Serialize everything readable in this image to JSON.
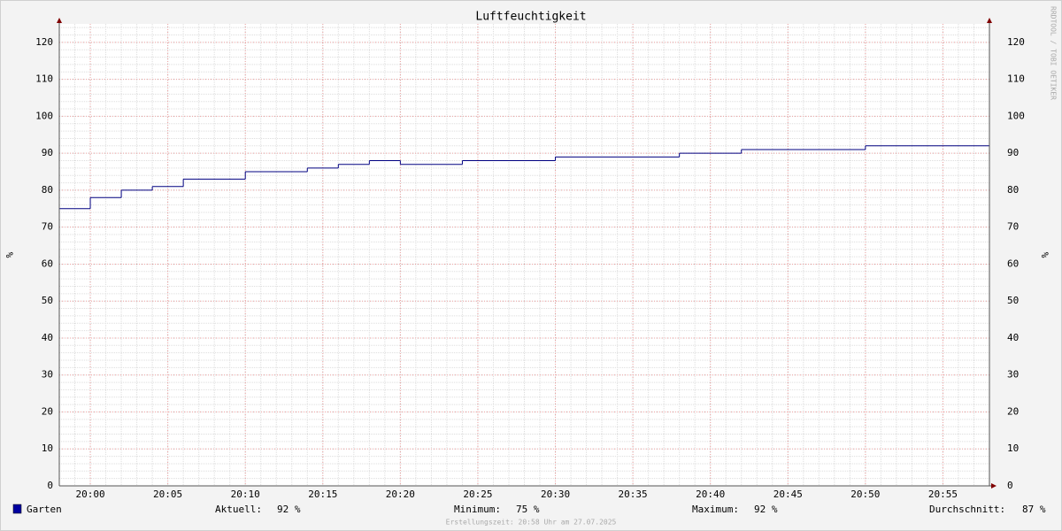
{
  "chart_data": {
    "type": "step",
    "title": "Luftfeuchtigkeit",
    "y_label": "%",
    "y2_label": "%",
    "watermark": "RRDTOOL / TOBI OETIKER",
    "x": [
      "19:58",
      "20:00",
      "20:02",
      "20:04",
      "20:06",
      "20:10",
      "20:14",
      "20:16",
      "20:18",
      "20:20",
      "20:24",
      "20:30",
      "20:38",
      "20:42",
      "20:50"
    ],
    "xlim": [
      "19:58",
      "20:58"
    ],
    "xticks": [
      "20:00",
      "20:05",
      "20:10",
      "20:15",
      "20:20",
      "20:25",
      "20:30",
      "20:35",
      "20:40",
      "20:45",
      "20:50",
      "20:55"
    ],
    "ylim": [
      0,
      125
    ],
    "yticks": [
      0,
      10,
      20,
      30,
      40,
      50,
      60,
      70,
      80,
      90,
      100,
      110,
      120
    ],
    "grid": true,
    "series": [
      {
        "name": "Garten",
        "color": "#000080",
        "values": [
          75,
          78,
          80,
          81,
          83,
          85,
          86,
          87,
          88,
          87,
          88,
          89,
          90,
          91,
          92
        ]
      }
    ],
    "legend_color": "#0000a0",
    "stats": [
      {
        "label": "Aktuell:",
        "value": "92 %"
      },
      {
        "label": "Minimum:",
        "value": "75 %"
      },
      {
        "label": "Maximum:",
        "value": "92 %"
      },
      {
        "label": "Durchschnitt:",
        "value": "87 %"
      }
    ],
    "footer": "Erstellungszeit: 20:58 Uhr am 27.07.2025"
  }
}
